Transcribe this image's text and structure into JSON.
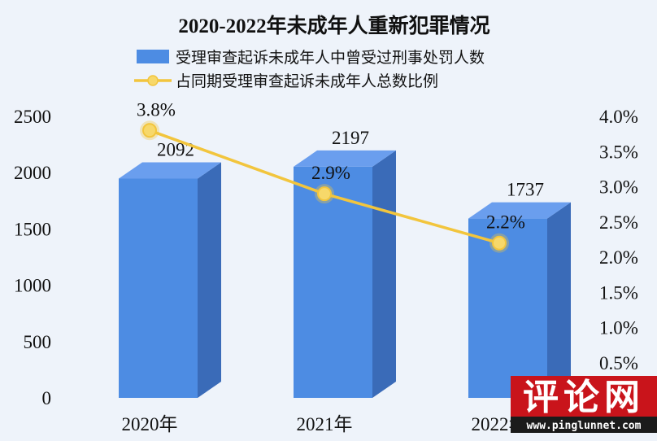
{
  "background": "#eef3fa",
  "chart_data": {
    "type": "bar",
    "title": "2020-2022年未成年人重新犯罪情况",
    "categories": [
      "2020年",
      "2021年",
      "2022年"
    ],
    "series": [
      {
        "name": "受理审查起诉未成年人中曾受过刑事处罚人数",
        "type": "bar",
        "axis": "left",
        "values": [
          2092,
          2197,
          1737
        ],
        "labels": [
          "2092",
          "2197",
          "1737"
        ],
        "colors": {
          "front": "#4d8ce3",
          "side": "#3a6bb8",
          "top": "#6a9eee"
        }
      },
      {
        "name": "占同期受理审查起诉未成年人总数比例",
        "type": "line",
        "axis": "right",
        "values": [
          3.8,
          2.9,
          2.2
        ],
        "labels": [
          "3.8%",
          "2.9%",
          "2.2%"
        ],
        "colors": {
          "line": "#f2c53d",
          "marker": "#f7d86a"
        }
      }
    ],
    "y_left": {
      "range": [
        0,
        2500
      ],
      "tick_values": [
        0,
        500,
        1000,
        1500,
        2000,
        2500
      ],
      "tick_labels": [
        "0",
        "500",
        "1000",
        "1500",
        "2000",
        "2500"
      ]
    },
    "y_right": {
      "range": [
        0,
        4.0
      ],
      "tick_values": [
        0.5,
        1.0,
        1.5,
        2.0,
        2.5,
        3.0,
        3.5,
        4.0
      ],
      "tick_labels": [
        "0.5%",
        "1.0%",
        "1.5%",
        "2.0%",
        "2.5%",
        "3.0%",
        "3.5%",
        "4.0%"
      ]
    },
    "grid": false,
    "legend": "top"
  },
  "watermark": {
    "logo_text": "评论网",
    "url_text": "www.pinglunnet.com",
    "colors": {
      "bg": "#c9141b",
      "strip": "#1b1b1b",
      "text": "#ffffff"
    }
  }
}
